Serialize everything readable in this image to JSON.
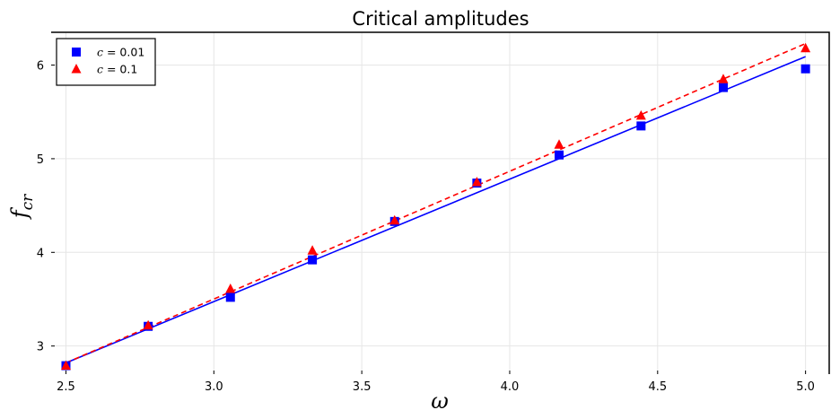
{
  "chart_data": {
    "type": "scatter",
    "title": "Critical amplitudes",
    "xlabel": "ω",
    "ylabel": {
      "base": "f",
      "subscript": "cr"
    },
    "xlim": [
      2.45,
      5.08
    ],
    "ylim": [
      2.7,
      6.35
    ],
    "xticks": [
      2.5,
      3.0,
      3.5,
      4.0,
      4.5,
      5.0
    ],
    "xtick_labels": [
      "2.5",
      "3.0",
      "3.5",
      "4.0",
      "4.5",
      "5.0"
    ],
    "yticks": [
      3,
      4,
      5,
      6
    ],
    "ytick_labels": [
      "3",
      "4",
      "5",
      "6"
    ],
    "grid": true,
    "legend_position": "top-left",
    "series": [
      {
        "legend_symbol": "c",
        "legend_value": " = 0.01",
        "color": "#0000ff",
        "marker": "square",
        "x": [
          2.5,
          2.778,
          3.056,
          3.333,
          3.611,
          3.889,
          4.167,
          4.444,
          4.722,
          5.0
        ],
        "y": [
          2.79,
          3.21,
          3.52,
          3.92,
          4.33,
          4.74,
          5.04,
          5.35,
          5.76,
          5.96
        ],
        "fit": {
          "style": "solid",
          "x": [
            2.5,
            5.0
          ],
          "y": [
            2.82,
            6.09
          ]
        }
      },
      {
        "legend_symbol": "c",
        "legend_value": " = 0.1",
        "color": "#ff0000",
        "marker": "triangle",
        "x": [
          2.5,
          2.778,
          3.056,
          3.333,
          3.611,
          3.889,
          4.167,
          4.444,
          4.722,
          5.0
        ],
        "y": [
          2.79,
          3.22,
          3.61,
          4.02,
          4.34,
          4.75,
          5.15,
          5.46,
          5.85,
          6.18
        ],
        "fit": {
          "style": "dashed",
          "x": [
            2.5,
            5.0
          ],
          "y": [
            2.82,
            6.23
          ]
        }
      }
    ]
  }
}
